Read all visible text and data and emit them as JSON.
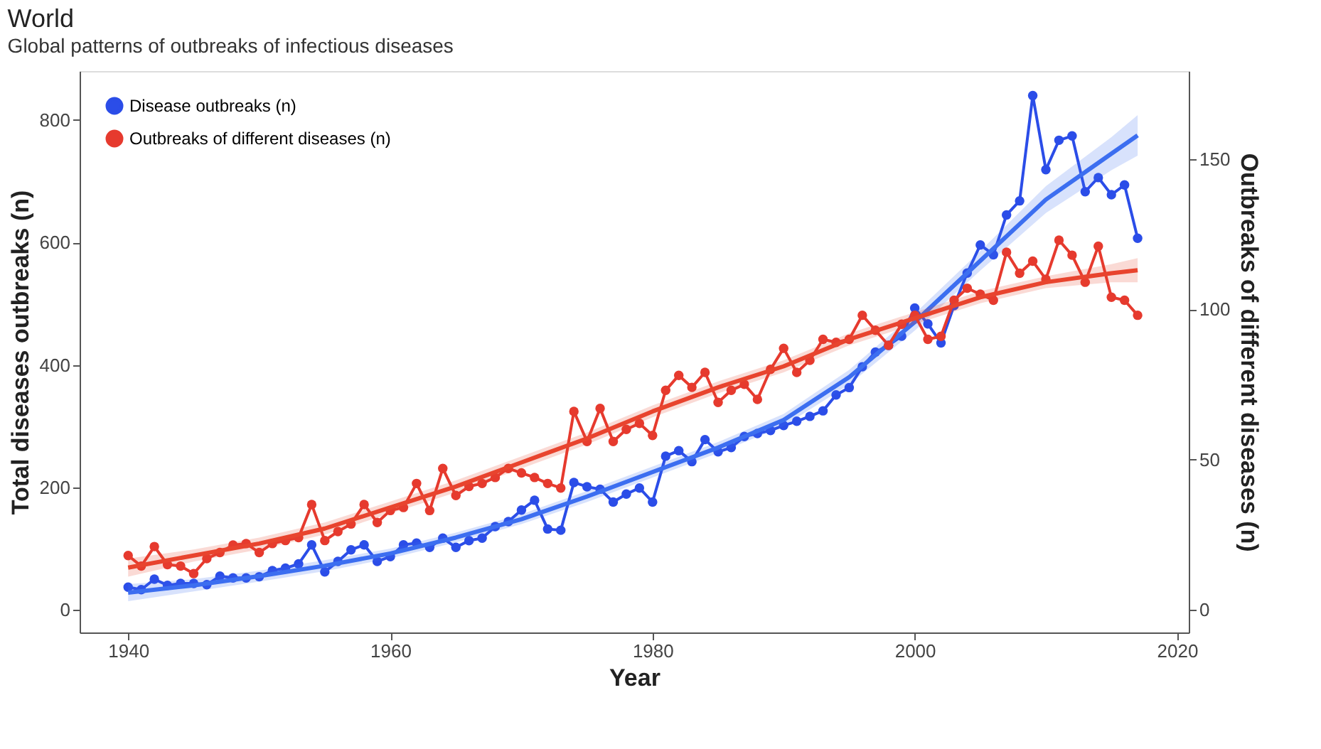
{
  "chart_data": {
    "type": "line",
    "title": "World",
    "subtitle": "Global patterns of outbreaks of infectious diseases",
    "xlabel": "Year",
    "ylabel": "Total diseases outbreaks (n)",
    "y2label": "Outbreaks of different diseases (n)",
    "x": [
      1940,
      1941,
      1942,
      1943,
      1944,
      1945,
      1946,
      1947,
      1948,
      1949,
      1950,
      1951,
      1952,
      1953,
      1954,
      1955,
      1956,
      1957,
      1958,
      1959,
      1960,
      1961,
      1962,
      1963,
      1964,
      1965,
      1966,
      1967,
      1968,
      1969,
      1970,
      1971,
      1972,
      1973,
      1974,
      1975,
      1976,
      1977,
      1978,
      1979,
      1980,
      1981,
      1982,
      1983,
      1984,
      1985,
      1986,
      1987,
      1988,
      1989,
      1990,
      1991,
      1992,
      1993,
      1994,
      1995,
      1996,
      1997,
      1998,
      1999,
      2000,
      2001,
      2002,
      2003,
      2004,
      2005,
      2006,
      2007,
      2008,
      2009,
      2010,
      2011,
      2012,
      2013,
      2014,
      2015,
      2016,
      2017
    ],
    "series": [
      {
        "name": "Disease outbreaks (n)",
        "color": "#2b4de8",
        "marker": "circle",
        "values": [
          37,
          33,
          50,
          40,
          43,
          43,
          41,
          55,
          52,
          52,
          54,
          64,
          68,
          75,
          106,
          62,
          79,
          98,
          106,
          79,
          87,
          106,
          109,
          102,
          117,
          102,
          113,
          117,
          136,
          144,
          163,
          179,
          132,
          130,
          208,
          201,
          197,
          176,
          189,
          199,
          176,
          251,
          260,
          242,
          278,
          258,
          265,
          283,
          288,
          293,
          301,
          308,
          316,
          325,
          351,
          363,
          397,
          421,
          432,
          447,
          493,
          467,
          436,
          497,
          550,
          596,
          580,
          645,
          668,
          840,
          719,
          767,
          774,
          683,
          706,
          678,
          694,
          607
        ]
      },
      {
        "name": "Outbreaks of different diseases (n)",
        "color": "#e63a2e",
        "marker": "circle",
        "axis": "y2",
        "values": [
          18,
          14.5,
          21,
          15,
          14.5,
          12,
          17,
          19,
          21.5,
          22,
          19,
          22,
          23,
          24,
          35,
          23,
          26,
          28.5,
          35,
          29,
          33,
          34,
          42,
          33,
          47,
          38,
          41,
          42,
          44,
          47,
          45.5,
          44,
          42,
          40.5,
          66,
          56,
          67,
          56,
          60,
          62,
          58,
          73,
          78,
          74,
          79,
          69,
          73,
          75,
          70,
          80,
          87,
          79,
          83,
          90,
          89,
          90,
          98,
          93,
          88,
          95,
          98,
          90,
          91,
          103,
          107,
          105,
          103,
          119,
          112,
          116,
          110,
          123,
          118,
          109,
          121,
          104,
          103,
          98
        ]
      },
      {
        "color": "#3c6ef0",
        "marker": "none",
        "x": [
          1940,
          1945,
          1950,
          1955,
          1960,
          1965,
          1970,
          1975,
          1980,
          1985,
          1990,
          1995,
          2000,
          2005,
          2010,
          2015,
          2017
        ],
        "values": [
          28,
          40,
          55,
          72,
          92,
          118,
          148,
          185,
          225,
          265,
          310,
          380,
          470,
          570,
          670,
          745,
          775
        ],
        "lower": [
          14,
          30,
          46,
          63,
          84,
          110,
          140,
          176,
          216,
          256,
          300,
          368,
          456,
          554,
          648,
          718,
          742
        ],
        "upper": [
          42,
          50,
          64,
          81,
          100,
          126,
          156,
          194,
          234,
          274,
          320,
          392,
          484,
          586,
          692,
          772,
          808
        ]
      },
      {
        "color": "#e8442e",
        "marker": "none",
        "axis": "y2",
        "x": [
          1940,
          1945,
          1950,
          1955,
          1960,
          1965,
          1970,
          1975,
          1980,
          1985,
          1990,
          1995,
          2000,
          2005,
          2010,
          2015,
          2017
        ],
        "values": [
          14,
          18,
          22,
          27,
          34,
          41,
          49,
          57,
          66,
          74,
          81,
          90,
          97,
          104,
          109,
          112,
          113
        ],
        "lower": [
          11,
          16,
          20,
          25,
          32,
          39,
          47,
          55,
          64,
          72,
          79,
          88,
          95,
          102,
          107,
          109,
          109
        ],
        "upper": [
          17,
          20,
          24,
          29,
          36,
          43,
          51,
          59,
          68,
          76,
          83,
          92,
          99,
          106,
          111,
          115,
          117
        ]
      }
    ],
    "xlim": [
      1936.3,
      2020.9
    ],
    "xticks": [
      1940,
      1960,
      1980,
      2000,
      2020
    ],
    "ylim": [
      -37,
      880
    ],
    "yticks": [
      0,
      200,
      400,
      600,
      800
    ],
    "y2lim": [
      -7.6,
      179.3
    ],
    "y2ticks": [
      0,
      50,
      100,
      150
    ],
    "grid": false,
    "legend": "top left",
    "line_style": "solid"
  }
}
